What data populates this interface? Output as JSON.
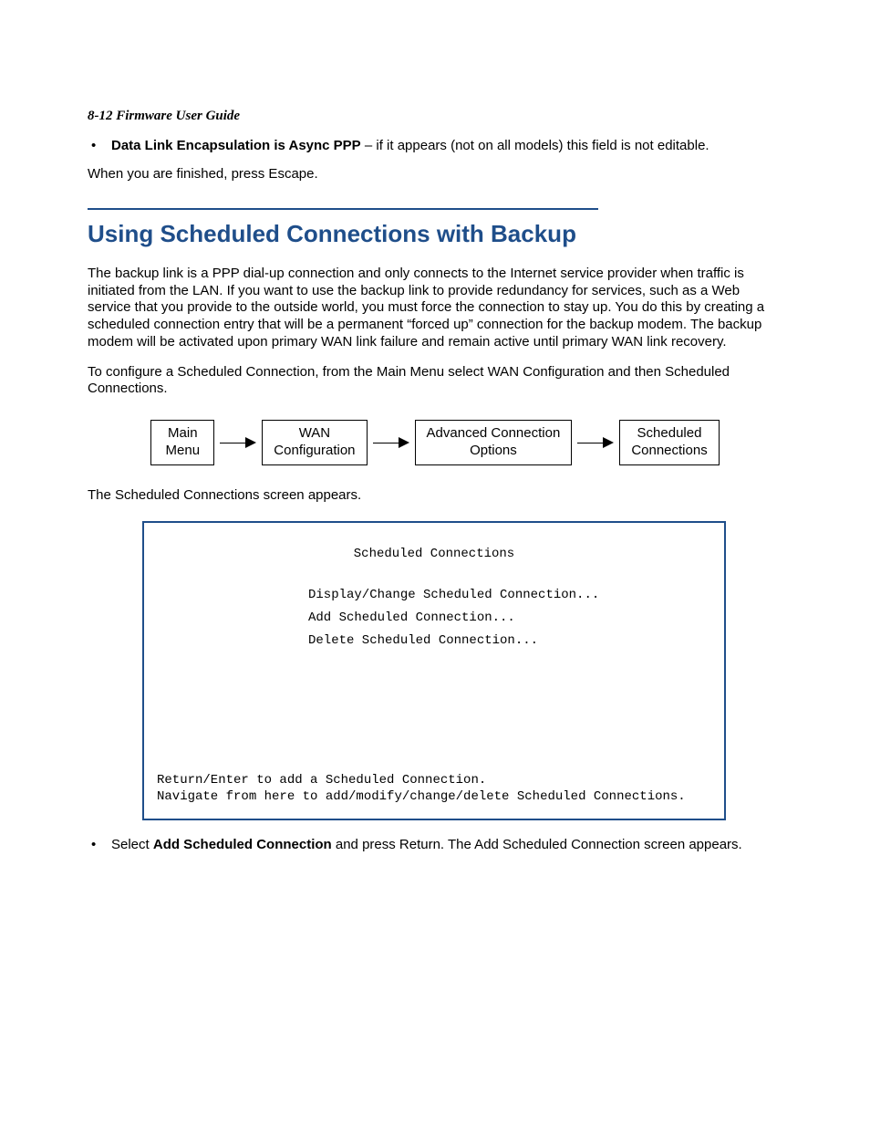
{
  "header": "8-12  Firmware User Guide",
  "bullet1_bold": "Data Link Encapsulation is Async PPP",
  "bullet1_rest": " – if it appears (not on all models) this field is not editable.",
  "para_finished": "When you are finished, press Escape.",
  "section_title": "Using Scheduled Connections with Backup",
  "para_backup": "The backup link is a PPP dial-up connection and only connects to the Internet service provider when traffic is initiated from the LAN. If you want to use the backup link to provide redundancy for services, such as a Web service that you provide to the outside world, you must force the connection to stay up. You do this by creating a scheduled connection entry that will be a permanent “forced up” connection for the backup modem. The backup modem will be activated upon primary WAN link failure and remain active until primary WAN link recovery.",
  "para_configure": "To configure a Scheduled Connection, from the Main Menu select WAN Configuration and then Scheduled Connections.",
  "flow": {
    "box1_l1": "Main",
    "box1_l2": "Menu",
    "box2_l1": "WAN",
    "box2_l2": "Configuration",
    "box3_l1": "Advanced Connection",
    "box3_l2": "Options",
    "box4_l1": "Scheduled",
    "box4_l2": "Connections"
  },
  "para_screen_appears": "The Scheduled Connections screen appears.",
  "terminal": {
    "title": "Scheduled Connections",
    "menu1": "Display/Change Scheduled Connection...",
    "menu2": "Add Scheduled Connection...",
    "menu3": "Delete Scheduled Connection...",
    "footer1": "Return/Enter to add a Scheduled Connection.",
    "footer2": "Navigate from here to add/modify/change/delete Scheduled Connections."
  },
  "bullet2_pre": "Select ",
  "bullet2_bold": "Add Scheduled Connection",
  "bullet2_post": " and press Return. The Add Scheduled Connection screen appears.",
  "colors": {
    "accent": "#1f4e8a",
    "text": "#000000",
    "background": "#ffffff"
  }
}
